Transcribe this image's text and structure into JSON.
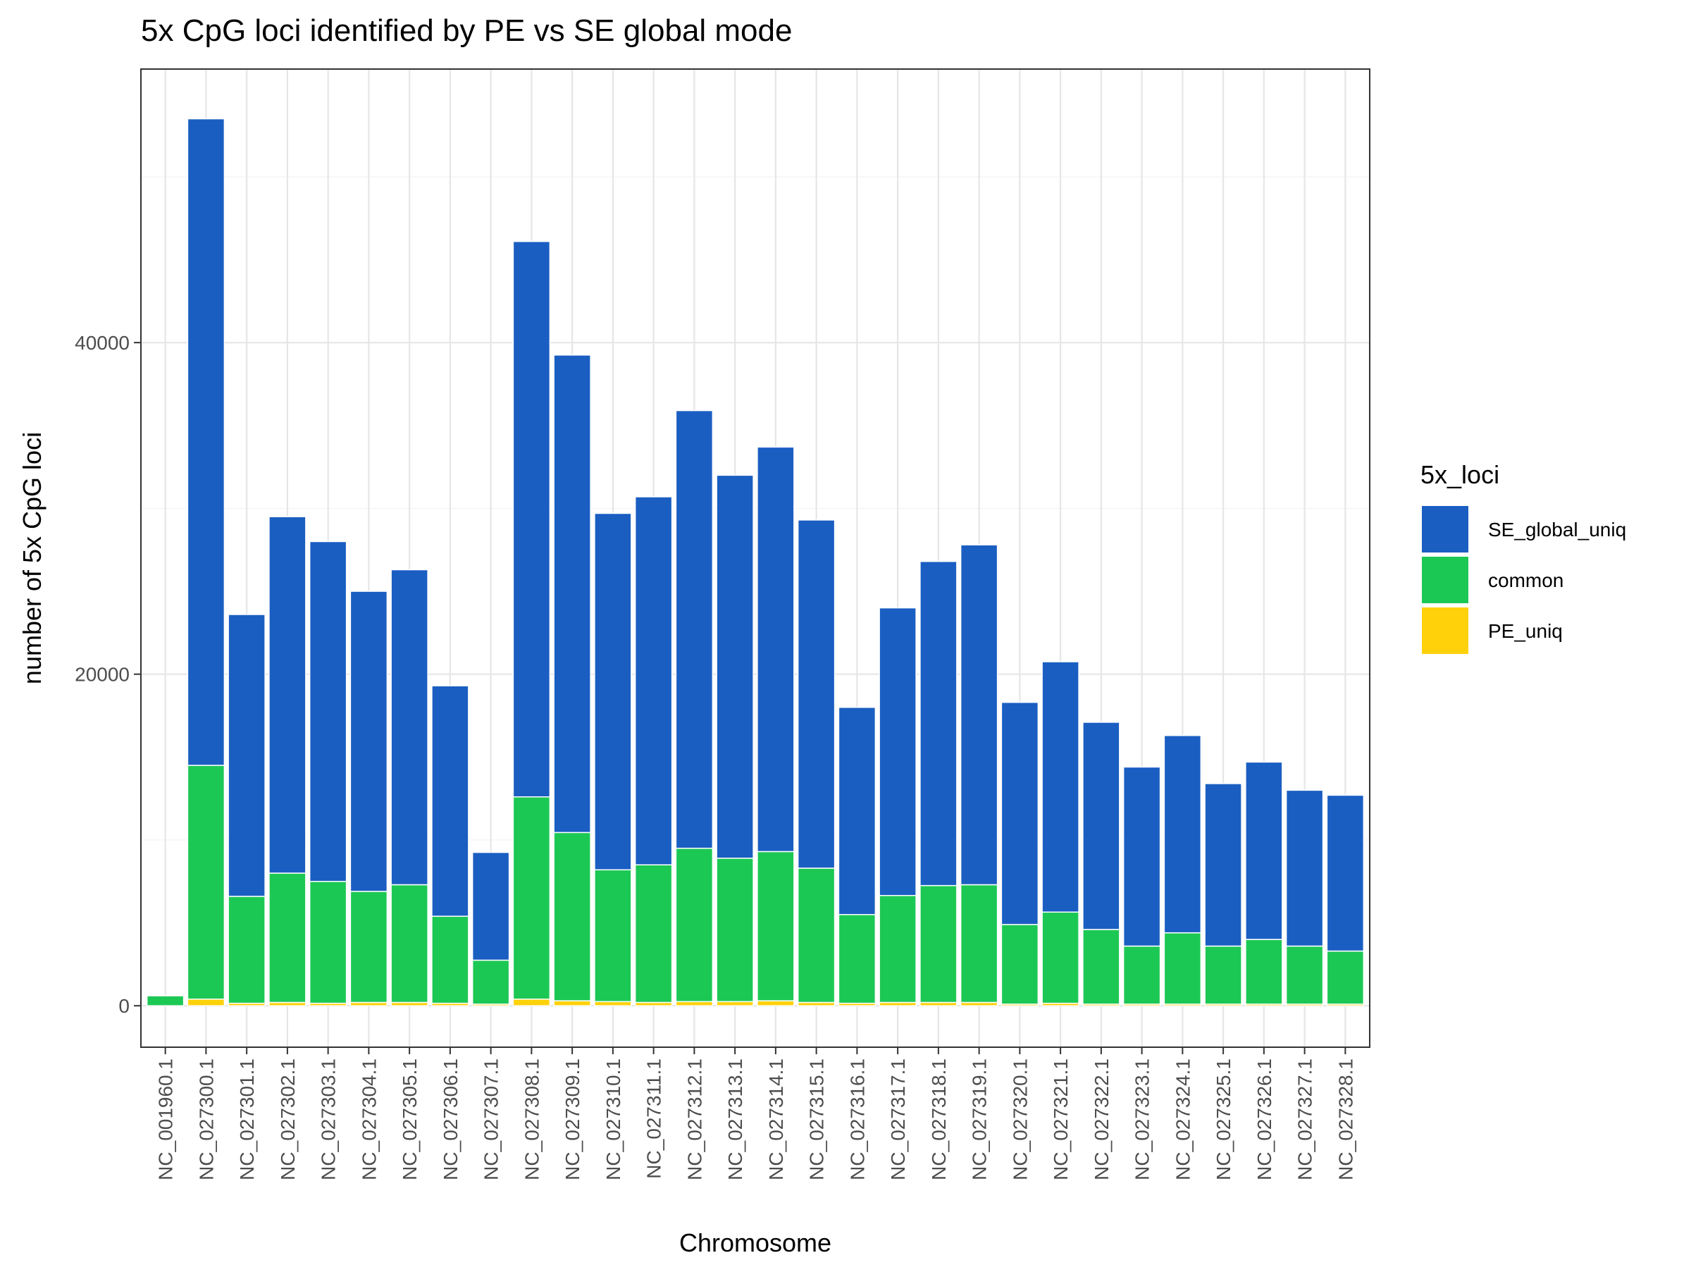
{
  "chart_data": {
    "type": "bar",
    "stacked": true,
    "title": "5x CpG loci identified by PE vs SE global mode",
    "xlabel": "Chromosome",
    "ylabel": "number of 5x CpG loci",
    "ylim": [
      -2500,
      56500
    ],
    "yticks": [
      0,
      20000,
      40000
    ],
    "grid": true,
    "legend": {
      "title": "5x_loci",
      "position": "right",
      "items": [
        "SE_global_uniq",
        "common",
        "PE_uniq"
      ]
    },
    "categories": [
      "NC_001960.1",
      "NC_027300.1",
      "NC_027301.1",
      "NC_027302.1",
      "NC_027303.1",
      "NC_027304.1",
      "NC_027305.1",
      "NC_027306.1",
      "NC_027307.1",
      "NC_027308.1",
      "NC_027309.1",
      "NC_027310.1",
      "NC_027311.1",
      "NC_027312.1",
      "NC_027313.1",
      "NC_027314.1",
      "NC_027315.1",
      "NC_027316.1",
      "NC_027317.1",
      "NC_027318.1",
      "NC_027319.1",
      "NC_027320.1",
      "NC_027321.1",
      "NC_027322.1",
      "NC_027323.1",
      "NC_027324.1",
      "NC_027325.1",
      "NC_027326.1",
      "NC_027327.1",
      "NC_027328.1"
    ],
    "series": [
      {
        "name": "PE_uniq",
        "color": "#FFD10A",
        "values": [
          0,
          400,
          150,
          200,
          150,
          200,
          200,
          150,
          100,
          400,
          300,
          250,
          200,
          250,
          250,
          300,
          200,
          150,
          200,
          200,
          200,
          100,
          150,
          100,
          100,
          100,
          100,
          100,
          100,
          100
        ]
      },
      {
        "name": "common",
        "color": "#1CC854",
        "values": [
          600,
          14100,
          6450,
          7800,
          7350,
          6700,
          7100,
          5250,
          2650,
          12200,
          10150,
          7950,
          8300,
          9250,
          8650,
          9000,
          8100,
          5350,
          6450,
          7050,
          7100,
          4800,
          5500,
          4500,
          3500,
          4300,
          3500,
          3900,
          3500,
          3200
        ]
      },
      {
        "name": "SE_global_uniq",
        "color": "#1A5EC2",
        "values": [
          0,
          39000,
          17000,
          21500,
          20500,
          18100,
          19000,
          13900,
          6500,
          33500,
          28800,
          21500,
          22200,
          26400,
          23100,
          24400,
          21000,
          12500,
          17350,
          19550,
          20500,
          13400,
          15100,
          12500,
          10800,
          11900,
          9800,
          10700,
          9400,
          9400
        ]
      }
    ]
  }
}
